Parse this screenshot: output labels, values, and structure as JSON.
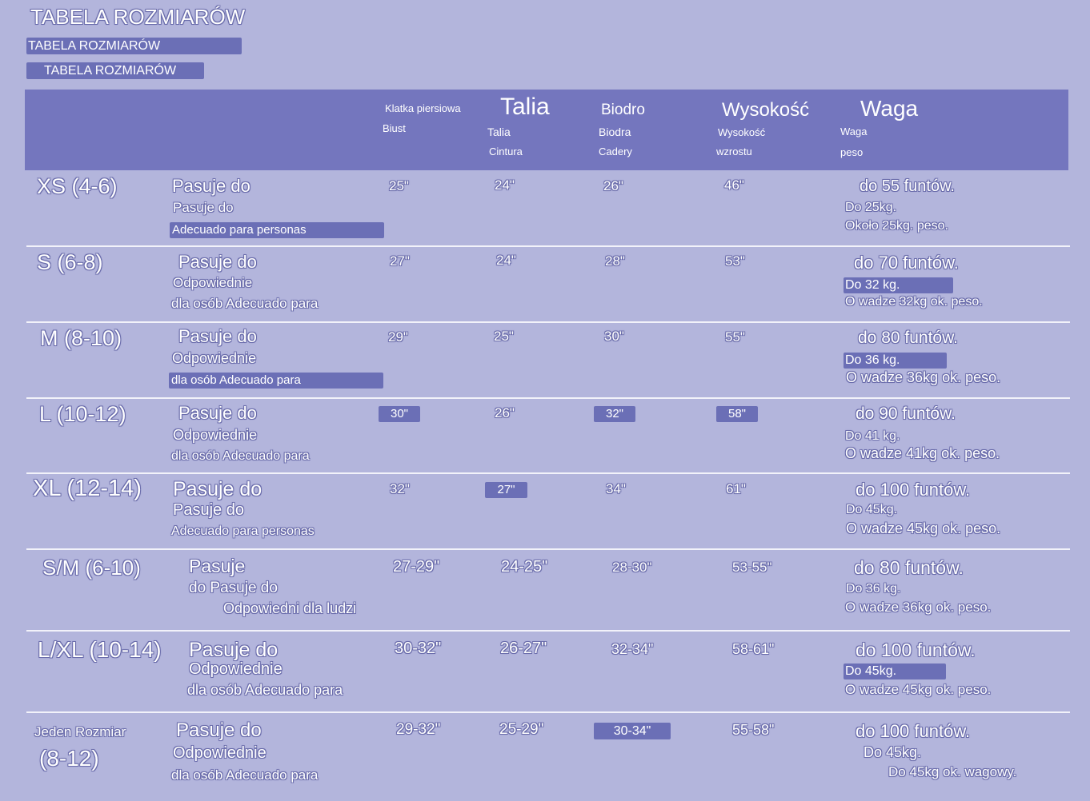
{
  "titles": {
    "main": "TABELA ROZMIARÓW",
    "second": "TABELA ROZMIARÓW",
    "third": "TABELA ROZMIARÓW"
  },
  "header": {
    "chest": {
      "small": "Klatka piersiowa",
      "sub": "Biust"
    },
    "waist": {
      "big": "Talia",
      "sub1": "Talia",
      "sub2": "Cintura"
    },
    "hip": {
      "big": "Biodro",
      "sub1": "Biodra",
      "sub2": "Cadery"
    },
    "height": {
      "big": "Wysokość",
      "sub1": "Wysokość",
      "sub2": "wzrostu"
    },
    "weight": {
      "big": "Waga",
      "sub1": "Waga",
      "sub2": "peso"
    }
  },
  "rows": [
    {
      "size": "XS (4-6)",
      "fit1": "Pasuje do",
      "fit2": "Pasuje do",
      "fit3": "Adecuado para personas",
      "chest": "25\"",
      "waist": "24\"",
      "hip": "26\"",
      "height": "46\"",
      "w1": "do 55 funtów.",
      "w2": "Do 25kg.",
      "w3": "Około 25kg. peso."
    },
    {
      "size": "S (6-8)",
      "fit1": "Pasuje do",
      "fit2": "Odpowiednie",
      "fit3": "dla osób Adecuado para",
      "chest": "27\"",
      "waist": "24\"",
      "hip": "28\"",
      "height": "53\"",
      "w1": "do 70 funtów.",
      "w2": "Do 32 kg.",
      "w3": "O wadze 32kg ok. peso."
    },
    {
      "size": "M (8-10)",
      "fit1": "Pasuje do",
      "fit2": "Odpowiednie",
      "fit3": "dla osób Adecuado para",
      "chest": "29\"",
      "waist": "25\"",
      "hip": "30\"",
      "height": "55\"",
      "w1": "do 80 funtów.",
      "w2": "Do 36 kg.",
      "w3": "O wadze 36kg ok. peso."
    },
    {
      "size": "L (10-12)",
      "fit1": "Pasuje do",
      "fit2": "Odpowiednie",
      "fit3": "dla osób Adecuado para",
      "chest": "30\"",
      "waist": "26\"",
      "hip": "32\"",
      "height": "58\"",
      "w1": "do 90 funtów.",
      "w2": "Do 41 kg.",
      "w3": "O wadze 41kg ok. peso."
    },
    {
      "size": "XL (12-14)",
      "fit1": "Pasuje do",
      "fit2": "Pasuje do",
      "fit3": "Adecuado para personas",
      "chest": "32\"",
      "waist": "27\"",
      "hip": "34\"",
      "height": "61\"",
      "w1": "do 100 funtów.",
      "w2": "Do 45kg.",
      "w3": "O wadze 45kg ok. peso."
    },
    {
      "size": "S/M (6-10)",
      "fit1": "Pasuje",
      "fit2": "do Pasuje do",
      "fit3": "Odpowiedni dla ludzi",
      "chest": "27-29\"",
      "waist": "24-25\"",
      "hip": "28-30\"",
      "height": "53-55\"",
      "w1": "do 80 funtów.",
      "w2": "Do 36 kg.",
      "w3": "O wadze 36kg ok. peso."
    },
    {
      "size": "L/XL (10-14)",
      "fit1": "Pasuje do",
      "fit2": "Odpowiednie",
      "fit3": "dla osób Adecuado para",
      "chest": "30-32\"",
      "waist": "26-27\"",
      "hip": "32-34\"",
      "height": "58-61\"",
      "w1": "do 100 funtów.",
      "w2": "Do 45kg.",
      "w3": "O wadze 45kg ok. peso."
    },
    {
      "size": "Jeden Rozmiar",
      "size2": "(8-12)",
      "fit1": "Pasuje do",
      "fit2": "Odpowiednie",
      "fit3": "dla osób Adecuado para",
      "chest": "29-32\"",
      "waist": "25-29\"",
      "hip": "30-34\"",
      "height": "55-58\"",
      "w1": "do 100 funtów.",
      "w2": "Do 45kg.",
      "w3": "Do 45kg ok. wagowy."
    }
  ]
}
